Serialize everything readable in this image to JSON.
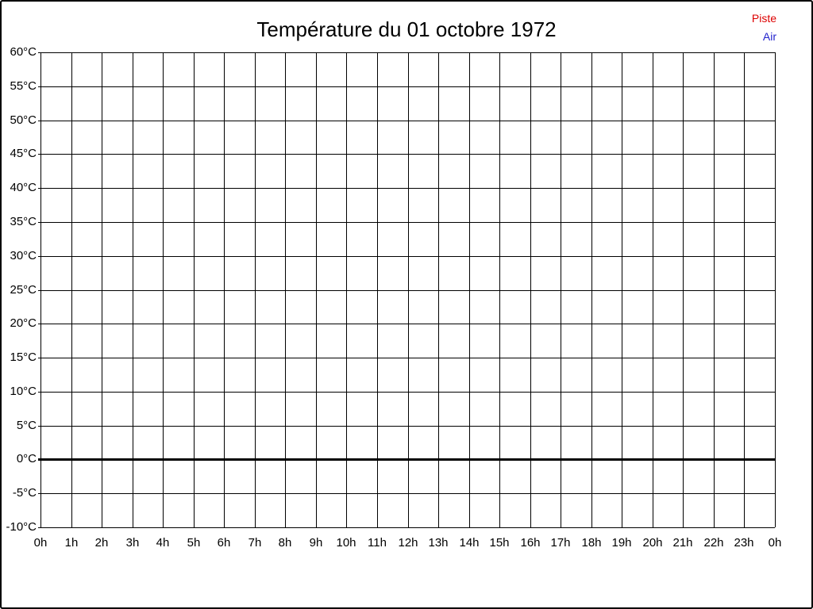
{
  "title": "Température du 01 octobre 1972",
  "legend": {
    "items": [
      {
        "label": "Piste",
        "color": "#dd0000"
      },
      {
        "label": "Air",
        "color": "#2222cc"
      }
    ]
  },
  "chart_data": {
    "type": "line",
    "title": "Température du 01 octobre 1972",
    "xlabel": "",
    "ylabel": "",
    "xlim": [
      0,
      24
    ],
    "ylim": [
      -10,
      60
    ],
    "y_step": 5,
    "grid": true,
    "legend_position": "top-right",
    "x_tick_labels": [
      "0h",
      "1h",
      "2h",
      "3h",
      "4h",
      "5h",
      "6h",
      "7h",
      "8h",
      "9h",
      "10h",
      "11h",
      "12h",
      "13h",
      "14h",
      "15h",
      "16h",
      "17h",
      "18h",
      "19h",
      "20h",
      "21h",
      "22h",
      "23h",
      "0h"
    ],
    "y_tick_labels": [
      "60°C",
      "55°C",
      "50°C",
      "45°C",
      "40°C",
      "35°C",
      "30°C",
      "25°C",
      "20°C",
      "15°C",
      "10°C",
      "5°C",
      "0°C",
      "-5°C",
      "-10°C"
    ],
    "zero_line": {
      "value": 0,
      "label": "0°C",
      "thick": true,
      "color": "#000000"
    },
    "series": [
      {
        "name": "Piste",
        "color": "#dd0000",
        "x": [],
        "values": []
      },
      {
        "name": "Air",
        "color": "#2222cc",
        "x": [],
        "values": []
      }
    ]
  }
}
